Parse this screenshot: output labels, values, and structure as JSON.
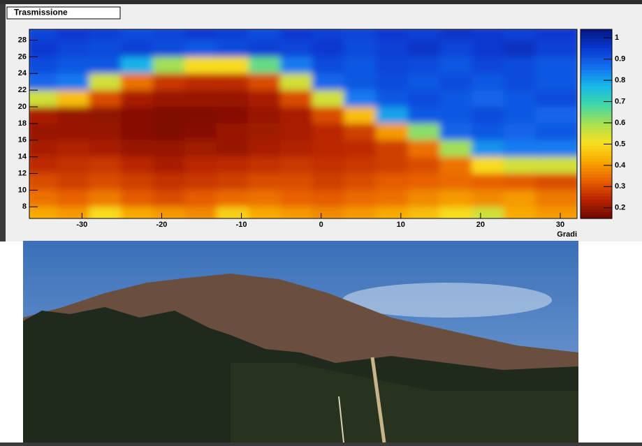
{
  "chart_data": {
    "type": "heatmap",
    "title": "Trasmissione",
    "x_label": "Gradi",
    "xlim": [
      -36.6,
      32.1
    ],
    "ylim": [
      6.6,
      29.3
    ],
    "xticks": [
      -30,
      -20,
      -10,
      0,
      10,
      20,
      30
    ],
    "yticks": [
      8,
      10,
      12,
      14,
      16,
      18,
      20,
      22,
      24,
      26,
      28
    ],
    "zlim": [
      0.15,
      1.04
    ],
    "zticks": [
      0.2,
      0.3,
      0.4,
      0.5,
      0.6,
      0.7,
      0.8,
      0.9,
      1
    ],
    "colorscale": [
      "#6e0800",
      "#b82400",
      "#e86000",
      "#f8a800",
      "#f8e020",
      "#a8e050",
      "#40d8a8",
      "#18b8e8",
      "#1470f0",
      "#0838d0",
      "#041880"
    ],
    "xbins": [
      -36.6,
      -32.6,
      -28.6,
      -24.6,
      -20.6,
      -16.6,
      -12.6,
      -8.6,
      -4.6,
      -0.6,
      3.4,
      7.4,
      11.4,
      15.4,
      19.4,
      23.4,
      27.4,
      32.1
    ],
    "ybins": [
      6.6,
      8.5,
      10.5,
      12.5,
      14.5,
      16.5,
      18.5,
      20.5,
      22.5,
      24.5,
      26.5,
      28.5,
      29.3
    ],
    "z": [
      [
        0.42,
        0.4,
        0.5,
        0.42,
        0.4,
        0.38,
        0.48,
        0.42,
        0.4,
        0.38,
        0.4,
        0.42,
        0.45,
        0.5,
        0.55,
        0.42,
        0.4
      ],
      [
        0.35,
        0.33,
        0.36,
        0.32,
        0.3,
        0.32,
        0.34,
        0.35,
        0.33,
        0.32,
        0.34,
        0.35,
        0.38,
        0.4,
        0.38,
        0.4,
        0.36
      ],
      [
        0.3,
        0.28,
        0.3,
        0.28,
        0.26,
        0.27,
        0.28,
        0.3,
        0.3,
        0.28,
        0.3,
        0.32,
        0.33,
        0.34,
        0.33,
        0.32,
        0.3
      ],
      [
        0.25,
        0.26,
        0.27,
        0.24,
        0.22,
        0.24,
        0.25,
        0.26,
        0.27,
        0.26,
        0.27,
        0.28,
        0.3,
        0.35,
        0.5,
        0.55,
        0.55
      ],
      [
        0.22,
        0.23,
        0.22,
        0.2,
        0.2,
        0.21,
        0.2,
        0.22,
        0.23,
        0.24,
        0.25,
        0.28,
        0.35,
        0.6,
        0.82,
        0.85,
        0.85
      ],
      [
        0.2,
        0.2,
        0.2,
        0.18,
        0.17,
        0.18,
        0.2,
        0.21,
        0.22,
        0.24,
        0.28,
        0.4,
        0.62,
        0.88,
        0.9,
        0.88,
        0.9
      ],
      [
        0.22,
        0.2,
        0.19,
        0.18,
        0.17,
        0.17,
        0.18,
        0.2,
        0.22,
        0.3,
        0.45,
        0.8,
        0.9,
        0.9,
        0.92,
        0.9,
        0.88
      ],
      [
        0.55,
        0.45,
        0.3,
        0.22,
        0.2,
        0.2,
        0.2,
        0.22,
        0.3,
        0.55,
        0.85,
        0.9,
        0.92,
        0.9,
        0.88,
        0.9,
        0.92
      ],
      [
        0.88,
        0.85,
        0.55,
        0.35,
        0.27,
        0.25,
        0.25,
        0.3,
        0.55,
        0.88,
        0.9,
        0.92,
        0.9,
        0.92,
        0.9,
        0.92,
        0.9
      ],
      [
        0.92,
        0.9,
        0.9,
        0.78,
        0.6,
        0.5,
        0.5,
        0.65,
        0.85,
        0.92,
        0.9,
        0.93,
        0.92,
        0.9,
        0.93,
        0.92,
        0.9
      ],
      [
        0.95,
        0.93,
        0.92,
        0.94,
        0.92,
        0.9,
        0.92,
        0.94,
        0.93,
        0.95,
        0.92,
        0.94,
        0.96,
        0.93,
        0.95,
        0.97,
        0.94
      ],
      [
        0.93,
        0.95,
        0.94,
        0.92,
        0.93,
        0.95,
        0.94,
        0.92,
        0.95,
        0.94,
        0.93,
        0.95,
        0.94,
        0.96,
        0.95,
        0.94,
        0.95
      ]
    ]
  }
}
